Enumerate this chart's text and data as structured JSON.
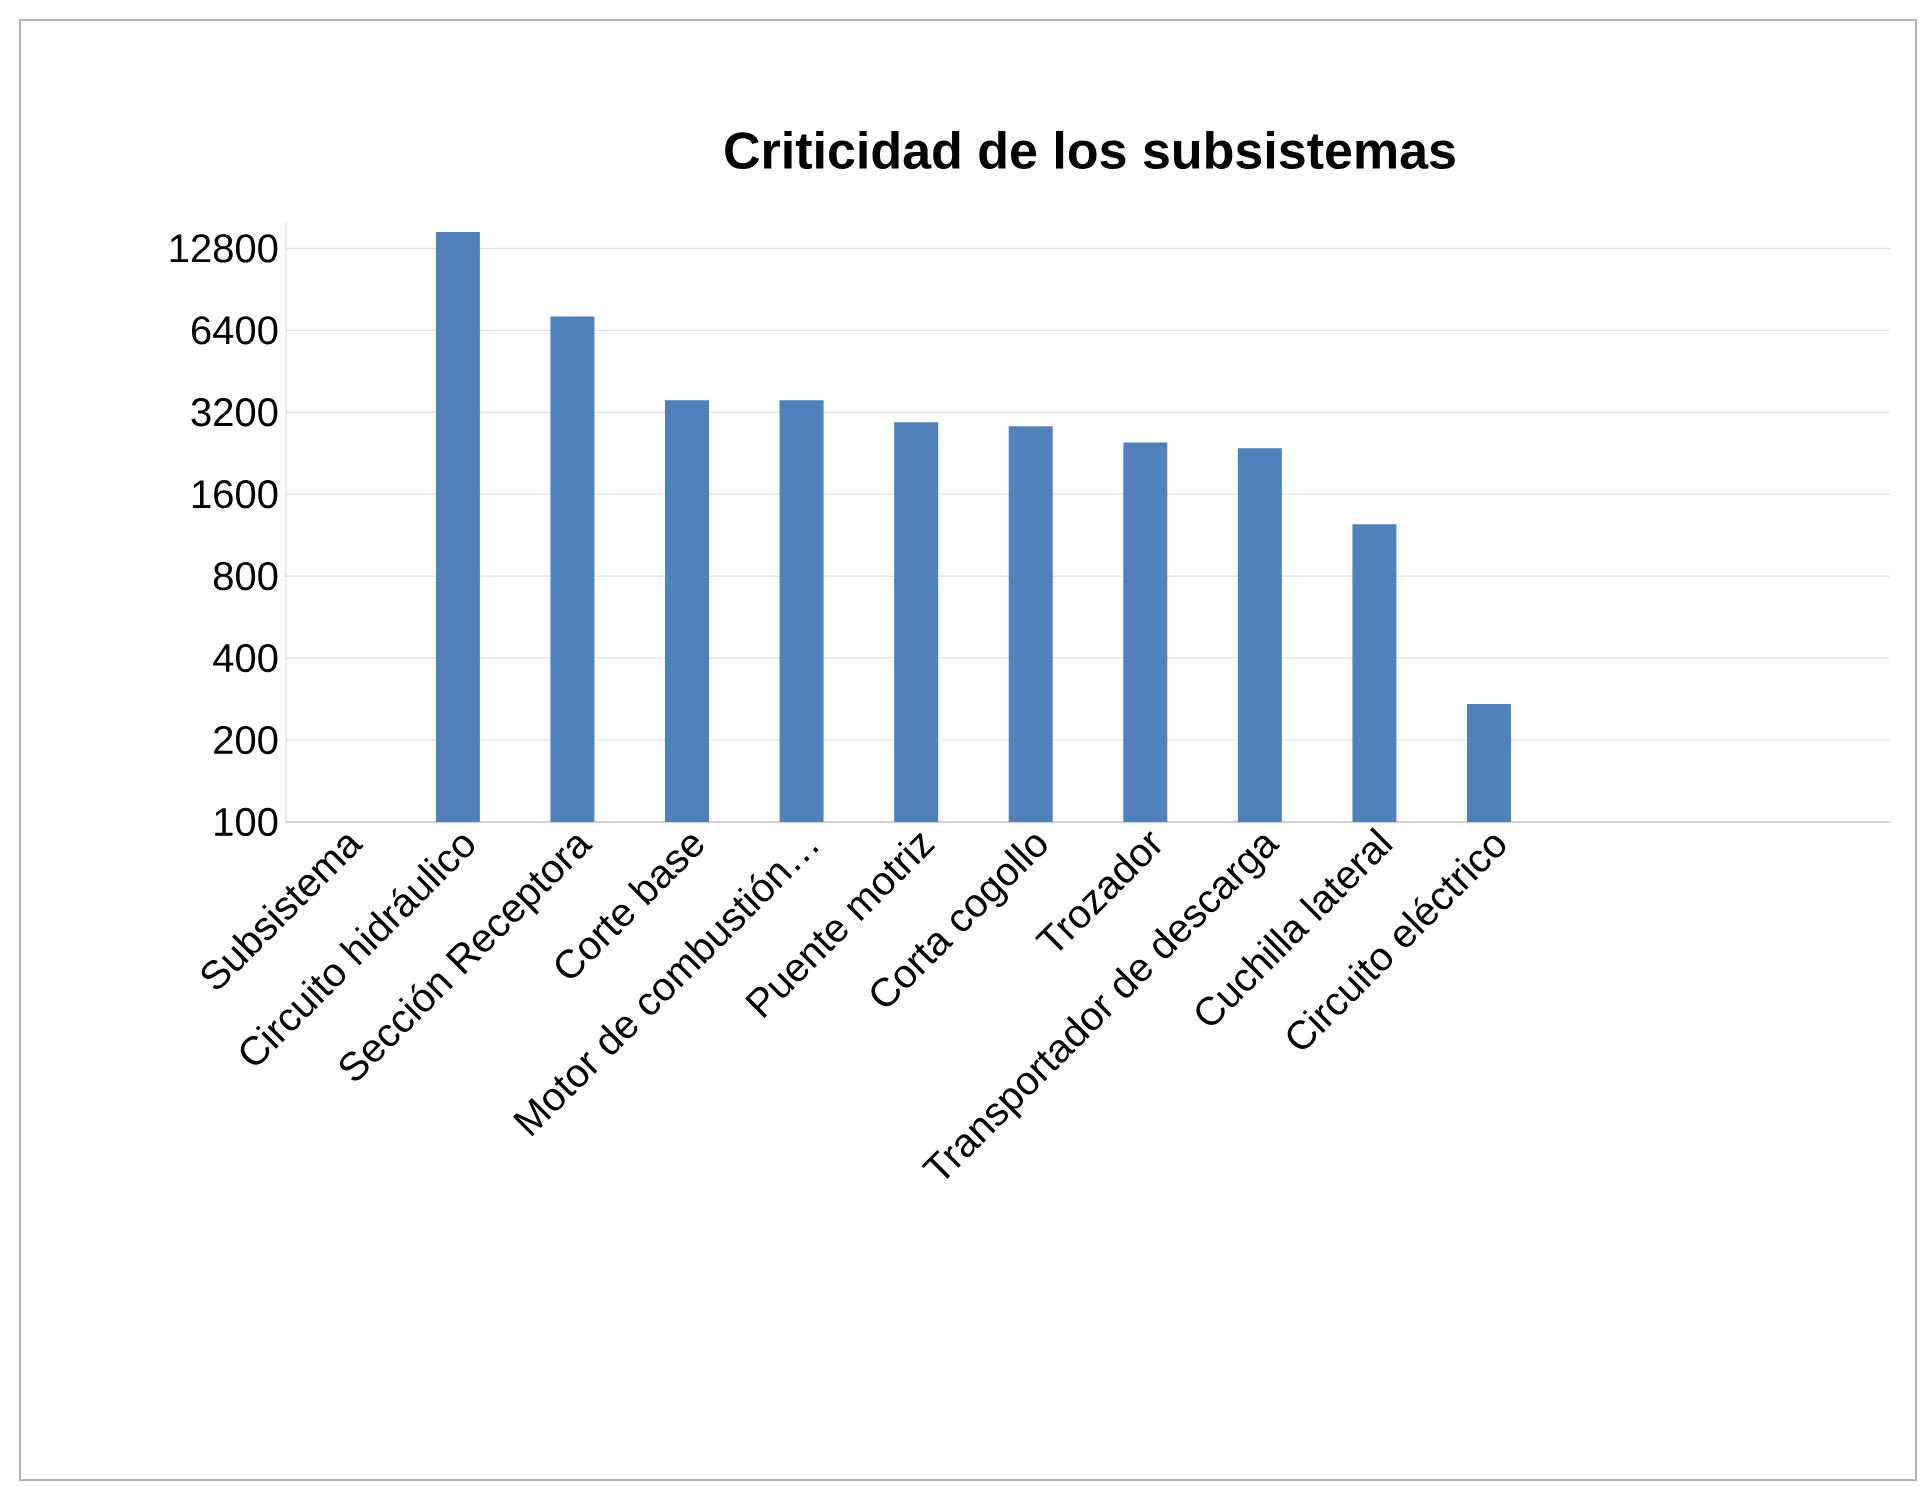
{
  "chart_data": {
    "type": "bar",
    "title": "Criticidad de los subsistemas",
    "categories": [
      "Subsistema",
      "Circuito hidráulico",
      "Sección Receptora",
      "Corte base",
      "Motor de combustión…",
      "Puente motriz",
      "Corta cogollo",
      "Trozador",
      "Transportador de descarga",
      "Cuchilla lateral",
      "Circuito eléctrico",
      null,
      null,
      null
    ],
    "values": [
      null,
      14700,
      7200,
      3540,
      3540,
      2940,
      2840,
      2480,
      2360,
      1240,
      271,
      null,
      null,
      null
    ],
    "color": "#4f81bd",
    "log": true,
    "ylim": [
      100,
      16000
    ],
    "yticks": [
      100,
      200,
      400,
      800,
      1600,
      3200,
      6400,
      12800
    ],
    "grid": "y"
  }
}
